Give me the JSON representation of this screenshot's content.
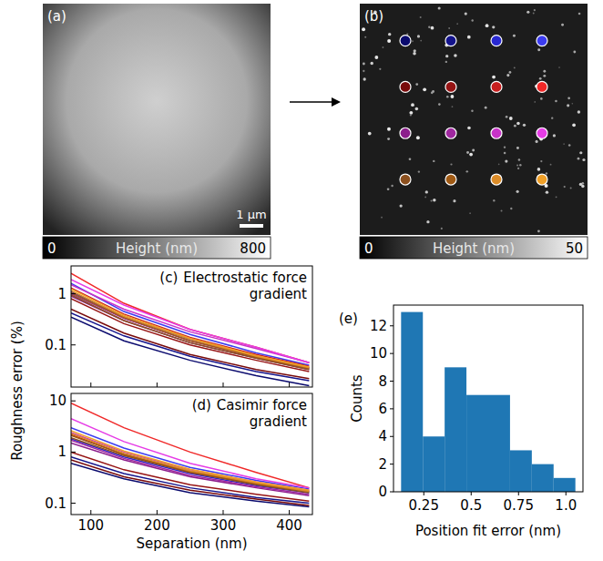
{
  "chart_data": [
    {
      "type": "image",
      "panel_label": "(a)",
      "scale_bar": "1 μm",
      "colorbar": {
        "label": "Height (nm)",
        "range": [
          0,
          800
        ],
        "ticks": [
          0,
          800
        ]
      }
    },
    {
      "type": "image",
      "panel_label": "(b)",
      "colorbar": {
        "label": "Height (nm)",
        "range": [
          0,
          50
        ],
        "ticks": [
          0,
          50
        ]
      },
      "marker_colors": [
        [
          "#0a0a6e",
          "#14148c",
          "#2828d2",
          "#3c3cf0"
        ],
        [
          "#780a0a",
          "#961414",
          "#c81e1e",
          "#f02828"
        ],
        [
          "#8c1e8c",
          "#a028a0",
          "#c832c8",
          "#e63ce6"
        ],
        [
          "#8c501e",
          "#a05a14",
          "#dc8c28",
          "#f0a028"
        ]
      ]
    },
    {
      "type": "line",
      "log": "y",
      "panel_label": "(c)",
      "title": "Electrostatic force gradient",
      "y_label": "Roughness error (%)",
      "tick_labels": "y",
      "x": [
        70,
        150,
        250,
        350,
        430
      ],
      "xlim": [
        70,
        435
      ],
      "xticks": [
        100,
        200,
        300,
        400
      ],
      "ylim": [
        0.015,
        3.5
      ],
      "yticks": [
        0.1,
        1
      ],
      "series": [
        {
          "color": "#0a0a6e",
          "values": [
            0.35,
            0.12,
            0.05,
            0.025,
            0.016
          ]
        },
        {
          "color": "#14148c",
          "values": [
            0.42,
            0.15,
            0.06,
            0.03,
            0.02
          ]
        },
        {
          "color": "#2828d2",
          "values": [
            1.1,
            0.35,
            0.13,
            0.06,
            0.035
          ]
        },
        {
          "color": "#3c3cf0",
          "values": [
            1.6,
            0.45,
            0.16,
            0.07,
            0.04
          ]
        },
        {
          "color": "#780a0a",
          "values": [
            0.5,
            0.17,
            0.065,
            0.033,
            0.022
          ]
        },
        {
          "color": "#961414",
          "values": [
            0.8,
            0.26,
            0.1,
            0.05,
            0.03
          ]
        },
        {
          "color": "#c81e1e",
          "values": [
            1.3,
            0.4,
            0.14,
            0.065,
            0.038
          ]
        },
        {
          "color": "#f02828",
          "values": [
            2.5,
            0.65,
            0.2,
            0.09,
            0.045
          ]
        },
        {
          "color": "#8c1e8c",
          "values": [
            0.9,
            0.3,
            0.11,
            0.055,
            0.033
          ]
        },
        {
          "color": "#a028a0",
          "values": [
            1.0,
            0.33,
            0.12,
            0.058,
            0.035
          ]
        },
        {
          "color": "#c832c8",
          "values": [
            1.5,
            0.5,
            0.18,
            0.085,
            0.045
          ]
        },
        {
          "color": "#e63ce6",
          "values": [
            1.9,
            0.6,
            0.2,
            0.09,
            0.045
          ]
        },
        {
          "color": "#8c501e",
          "values": [
            0.95,
            0.3,
            0.11,
            0.055,
            0.033
          ]
        },
        {
          "color": "#a05a14",
          "values": [
            1.05,
            0.34,
            0.12,
            0.058,
            0.035
          ]
        },
        {
          "color": "#dc8c28",
          "values": [
            1.15,
            0.36,
            0.13,
            0.06,
            0.036
          ]
        },
        {
          "color": "#f0a028",
          "values": [
            1.25,
            0.38,
            0.135,
            0.062,
            0.037
          ]
        }
      ]
    },
    {
      "type": "line",
      "log": "y",
      "panel_label": "(d)",
      "title": "Casimir force gradient",
      "x_label": "Separation (nm)",
      "x": [
        70,
        150,
        250,
        350,
        430
      ],
      "xlim": [
        70,
        435
      ],
      "xticks": [
        100,
        200,
        300,
        400
      ],
      "ylim": [
        0.06,
        14
      ],
      "yticks": [
        0.1,
        1,
        10
      ],
      "series": [
        {
          "color": "#0a0a6e",
          "values": [
            0.6,
            0.3,
            0.16,
            0.11,
            0.085
          ]
        },
        {
          "color": "#14148c",
          "values": [
            0.8,
            0.38,
            0.2,
            0.13,
            0.1
          ]
        },
        {
          "color": "#2828d2",
          "values": [
            1.8,
            0.8,
            0.38,
            0.22,
            0.16
          ]
        },
        {
          "color": "#3c3cf0",
          "values": [
            3,
            1.2,
            0.5,
            0.28,
            0.19
          ]
        },
        {
          "color": "#780a0a",
          "values": [
            0.7,
            0.33,
            0.18,
            0.12,
            0.09
          ]
        },
        {
          "color": "#961414",
          "values": [
            1.0,
            0.45,
            0.23,
            0.15,
            0.11
          ]
        },
        {
          "color": "#c81e1e",
          "values": [
            2.2,
            0.9,
            0.4,
            0.24,
            0.17
          ]
        },
        {
          "color": "#f02828",
          "values": [
            9,
            3,
            1.0,
            0.4,
            0.2
          ]
        },
        {
          "color": "#8c1e8c",
          "values": [
            1.5,
            0.7,
            0.33,
            0.2,
            0.14
          ]
        },
        {
          "color": "#a028a0",
          "values": [
            1.7,
            0.75,
            0.35,
            0.21,
            0.15
          ]
        },
        {
          "color": "#c832c8",
          "values": [
            2.4,
            1.0,
            0.45,
            0.26,
            0.18
          ]
        },
        {
          "color": "#e63ce6",
          "values": [
            4.5,
            1.6,
            0.6,
            0.3,
            0.2
          ]
        },
        {
          "color": "#8c501e",
          "values": [
            1.9,
            0.85,
            0.4,
            0.23,
            0.16
          ]
        },
        {
          "color": "#a05a14",
          "values": [
            2.1,
            0.9,
            0.42,
            0.24,
            0.17
          ]
        },
        {
          "color": "#dc8c28",
          "values": [
            2.3,
            0.95,
            0.43,
            0.25,
            0.17
          ]
        },
        {
          "color": "#f0a028",
          "values": [
            2.6,
            1.05,
            0.46,
            0.26,
            0.18
          ]
        }
      ]
    },
    {
      "type": "histogram",
      "panel_label": "(e)",
      "color": "#1f77b4",
      "bins": [
        0.13,
        0.245,
        0.36,
        0.475,
        0.59,
        0.705,
        0.82,
        0.935,
        1.05
      ],
      "counts": [
        13,
        4,
        9,
        7,
        7,
        3,
        2,
        1
      ],
      "xlim": [
        0.09,
        1.09
      ],
      "xticks": [
        0.25,
        0.5,
        0.75,
        {
          "value": 1,
          "label": "1.0"
        }
      ],
      "ylim": [
        0,
        13.5
      ],
      "yticks": [
        0,
        2,
        4,
        6,
        8,
        10,
        12
      ],
      "x_label": "Position fit error (nm)",
      "y_label": "Counts"
    }
  ]
}
